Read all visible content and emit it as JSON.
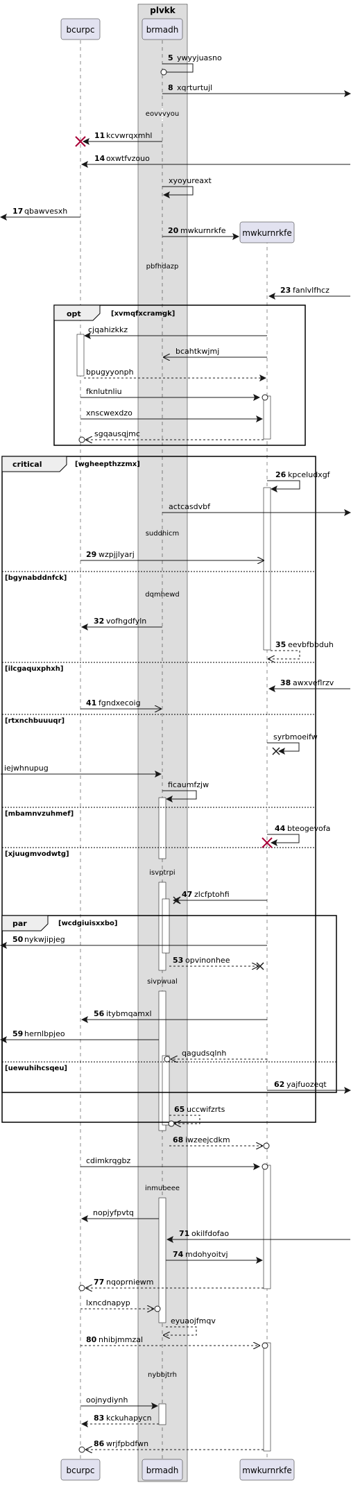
{
  "box": {
    "title": "plvkk"
  },
  "participants": [
    {
      "id": "bcurpc",
      "label": "bcurpc"
    },
    {
      "id": "brmadh",
      "label": "brmadh"
    },
    {
      "id": "mwkurnrkfe",
      "label": "mwkurnrkfe"
    }
  ],
  "messages": [
    {
      "num": "5",
      "text": "ywyyjuasno"
    },
    {
      "num": "8",
      "text": "xqrturtujl"
    },
    {
      "num": "11",
      "text": "kcvwrqxmhl"
    },
    {
      "num": "14",
      "text": "oxwtfvzouo"
    },
    {
      "num": "",
      "text": "xyoyureaxt"
    },
    {
      "num": "17",
      "text": "qbawvesxh"
    },
    {
      "num": "20",
      "text": "mwkurnrkfe"
    },
    {
      "num": "23",
      "text": "fanlvlfhcz"
    },
    {
      "num": "",
      "text": "cjqahizkkz"
    },
    {
      "num": "",
      "text": "bcahtkwjmj"
    },
    {
      "num": "",
      "text": "bpugyyonph"
    },
    {
      "num": "",
      "text": "fknlutnliu"
    },
    {
      "num": "",
      "text": "xnscwexdzo"
    },
    {
      "num": "",
      "text": "sgqausqjmc"
    },
    {
      "num": "26",
      "text": "kpceludxgf"
    },
    {
      "num": "",
      "text": "actcasdvbf"
    },
    {
      "num": "29",
      "text": "wzpjjlyarj"
    },
    {
      "num": "32",
      "text": "vofhgdfyln"
    },
    {
      "num": "35",
      "text": "eevbfbbduh"
    },
    {
      "num": "38",
      "text": "awxveflrzv"
    },
    {
      "num": "41",
      "text": "fgndxecoig"
    },
    {
      "num": "",
      "text": "syrbmoeifw"
    },
    {
      "num": "",
      "text": "iejwhnupug"
    },
    {
      "num": "",
      "text": "ficaumfzjw"
    },
    {
      "num": "44",
      "text": "bteogevofa"
    },
    {
      "num": "47",
      "text": "zlcfptohfi"
    },
    {
      "num": "50",
      "text": "nykwjipjeg"
    },
    {
      "num": "53",
      "text": "opvinonhee"
    },
    {
      "num": "56",
      "text": "itybmqamxl"
    },
    {
      "num": "59",
      "text": "hernlbpjeo"
    },
    {
      "num": "",
      "text": "qagudsqlnh"
    },
    {
      "num": "62",
      "text": "yajfuozeqt"
    },
    {
      "num": "65",
      "text": "uccwifzrts"
    },
    {
      "num": "68",
      "text": "iwzeejcdkm"
    },
    {
      "num": "",
      "text": "cdimkrqgbz"
    },
    {
      "num": "",
      "text": "nopjyfpvtq"
    },
    {
      "num": "71",
      "text": "okilfdofao"
    },
    {
      "num": "74",
      "text": "mdohyoitvj"
    },
    {
      "num": "77",
      "text": "nqoprniewm"
    },
    {
      "num": "",
      "text": "lxncdnapyp"
    },
    {
      "num": "",
      "text": "eyuaojfmqv"
    },
    {
      "num": "80",
      "text": "nhibjmmzal"
    },
    {
      "num": "",
      "text": "oojnydiynh"
    },
    {
      "num": "83",
      "text": "kckuhapycn"
    },
    {
      "num": "86",
      "text": "wrjfpbdfwn"
    }
  ],
  "dividers": [
    "eovvvyou",
    "pbfhdazp",
    "suddhicm",
    "dqmhewd",
    "isvptrpi",
    "sivpwual",
    "inmubeee",
    "nybbjtrh"
  ],
  "fragments": [
    {
      "kind": "opt",
      "guard": "[xvmqfxcramgk]"
    },
    {
      "kind": "critical",
      "guard": "[wgheepthzzmx]"
    },
    {
      "kind": "par",
      "guard": "[wcdgiuisxxbo]"
    }
  ],
  "else_guards": [
    "[bgynabddnfck]",
    "[ilcgaquxphxh]",
    "[rtxnchbuuuqr]",
    "[mbamnvzuhmef]",
    "[xjuugmvodwtg]",
    "[uewuhihcsqeu]"
  ],
  "colors": {
    "participant_fill": "#e2e2f0",
    "participant_border": "#181818",
    "box_fill": "#dddddd",
    "destroy_red": "#a80036"
  }
}
